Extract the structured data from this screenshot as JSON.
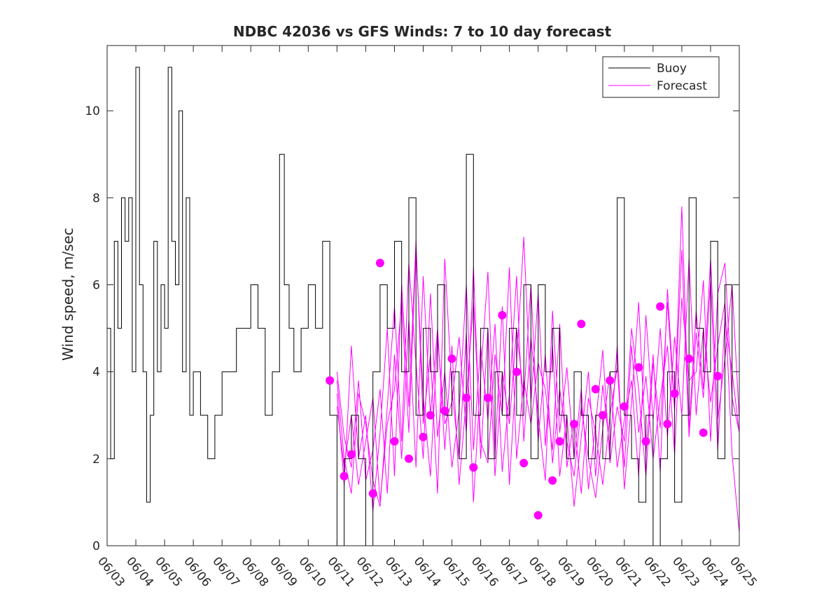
{
  "chart_data": {
    "type": "line",
    "title": "NDBC 42036 vs GFS Winds: 7 to 10 day forecast",
    "xlabel": "",
    "ylabel": "Wind speed, m/sec",
    "x_ticks": [
      "06/03",
      "06/04",
      "06/05",
      "06/06",
      "06/07",
      "06/08",
      "06/09",
      "06/10",
      "06/11",
      "06/12",
      "06/13",
      "06/14",
      "06/15",
      "06/16",
      "06/17",
      "06/18",
      "06/19",
      "06/20",
      "06/21",
      "06/22",
      "06/23",
      "06/24",
      "06/25"
    ],
    "xlim": [
      "06/03",
      "06/25"
    ],
    "y_ticks": [
      "0",
      "2",
      "4",
      "6",
      "8",
      "10"
    ],
    "ylim": [
      0,
      11.5
    ],
    "grid": false,
    "legend_position": "top-right",
    "colors": {
      "buoy": "#000000",
      "forecast": "#ff00ff"
    },
    "series": [
      {
        "name": "Buoy",
        "key": "buoy",
        "style": "step-line",
        "x": [
          "06/03 00:00",
          "06/03 03:00",
          "06/03 06:00",
          "06/03 09:00",
          "06/03 12:00",
          "06/03 15:00",
          "06/03 18:00",
          "06/03 21:00",
          "06/04 00:00",
          "06/04 03:00",
          "06/04 06:00",
          "06/04 09:00",
          "06/04 12:00",
          "06/04 15:00",
          "06/04 18:00",
          "06/04 21:00",
          "06/05 00:00",
          "06/05 03:00",
          "06/05 06:00",
          "06/05 09:00",
          "06/05 12:00",
          "06/05 15:00",
          "06/05 18:00",
          "06/05 21:00",
          "06/06 00:00",
          "06/06 06:00",
          "06/06 12:00",
          "06/06 18:00",
          "06/07 00:00",
          "06/07 06:00",
          "06/07 12:00",
          "06/07 18:00",
          "06/08 00:00",
          "06/08 06:00",
          "06/08 12:00",
          "06/08 18:00",
          "06/09 00:00",
          "06/09 04:00",
          "06/09 08:00",
          "06/09 12:00",
          "06/09 18:00",
          "06/10 00:00",
          "06/10 06:00",
          "06/10 12:00",
          "06/10 18:00",
          "06/11 00:00",
          "06/11 06:00",
          "06/11 12:00",
          "06/11 18:00",
          "06/12 00:00",
          "06/12 06:00",
          "06/12 12:00",
          "06/12 18:00",
          "06/13 00:00",
          "06/13 06:00",
          "06/13 12:00",
          "06/13 18:00",
          "06/14 00:00",
          "06/14 06:00",
          "06/14 12:00",
          "06/14 18:00",
          "06/15 00:00",
          "06/15 06:00",
          "06/15 12:00",
          "06/15 18:00",
          "06/16 00:00",
          "06/16 06:00",
          "06/16 12:00",
          "06/16 18:00",
          "06/17 00:00",
          "06/17 06:00",
          "06/17 12:00",
          "06/17 18:00",
          "06/18 00:00",
          "06/18 06:00",
          "06/18 12:00",
          "06/18 18:00",
          "06/19 00:00",
          "06/19 06:00",
          "06/19 12:00",
          "06/19 18:00",
          "06/20 00:00",
          "06/20 06:00",
          "06/20 12:00",
          "06/20 18:00",
          "06/21 00:00",
          "06/21 06:00",
          "06/21 12:00",
          "06/21 18:00",
          "06/22 00:00",
          "06/22 06:00",
          "06/22 12:00",
          "06/22 18:00",
          "06/23 00:00",
          "06/23 06:00",
          "06/23 12:00",
          "06/23 18:00",
          "06/24 00:00",
          "06/24 06:00",
          "06/24 12:00",
          "06/24 18:00",
          "06/25 00:00"
        ],
        "values": [
          5,
          2,
          7,
          5,
          8,
          7,
          8,
          4,
          11,
          6,
          4,
          1,
          3,
          7,
          4,
          6,
          5,
          11,
          7,
          6,
          10,
          4,
          8,
          3,
          4,
          3,
          2,
          3,
          4,
          4,
          5,
          5,
          6,
          5,
          3,
          4,
          9,
          6,
          5,
          4,
          5,
          6,
          5,
          7,
          3,
          0,
          2,
          3,
          2,
          0,
          4,
          6,
          5,
          7,
          4,
          8,
          3,
          5,
          4,
          6,
          3,
          4,
          2,
          9,
          3,
          5,
          2,
          4,
          3,
          5,
          3,
          6,
          2,
          6,
          4,
          5,
          3,
          2,
          4,
          3,
          2,
          3,
          2,
          4,
          8,
          3,
          2,
          1,
          3,
          0,
          2,
          4,
          1,
          3,
          8,
          5,
          4,
          7,
          2,
          6,
          3,
          3
        ]
      },
      {
        "name": "Forecast",
        "key": "forecast",
        "style": "thin-lines",
        "members": [
          {
            "x": [
              "06/11 00:00",
              "06/11 06:00",
              "06/11 12:00",
              "06/11 18:00",
              "06/12 00:00",
              "06/12 06:00",
              "06/12 12:00",
              "06/12 18:00",
              "06/13 00:00",
              "06/13 06:00",
              "06/13 12:00",
              "06/13 18:00",
              "06/14 00:00",
              "06/14 06:00",
              "06/14 12:00",
              "06/14 18:00",
              "06/15 00:00",
              "06/15 06:00",
              "06/15 12:00",
              "06/15 18:00",
              "06/16 00:00",
              "06/16 06:00",
              "06/16 12:00",
              "06/16 18:00",
              "06/17 00:00",
              "06/17 06:00",
              "06/17 12:00",
              "06/17 18:00",
              "06/18 00:00",
              "06/18 06:00",
              "06/18 12:00",
              "06/18 18:00",
              "06/19 00:00",
              "06/19 06:00",
              "06/19 12:00",
              "06/19 18:00",
              "06/20 00:00",
              "06/20 06:00",
              "06/20 12:00",
              "06/20 18:00",
              "06/21 00:00",
              "06/21 06:00",
              "06/21 12:00",
              "06/21 18:00",
              "06/22 00:00",
              "06/22 06:00",
              "06/22 12:00",
              "06/22 18:00",
              "06/23 00:00",
              "06/23 06:00",
              "06/23 12:00",
              "06/23 18:00",
              "06/24 00:00",
              "06/24 06:00",
              "06/24 12:00",
              "06/24 18:00",
              "06/25 00:00"
            ],
            "values": [
              3.8,
              2.0,
              1.2,
              3.5,
              2.8,
              1.5,
              0.9,
              3.2,
              5.5,
              2.4,
              6.5,
              4.2,
              2.0,
              5.8,
              2.5,
              4.0,
              1.8,
              3.1,
              6.0,
              2.2,
              4.6,
              2.9,
              5.1,
              1.7,
              3.5,
              6.2,
              2.4,
              4.8,
              3.0,
              1.5,
              5.4,
              2.6,
              4.1,
              2.0,
              3.6,
              1.3,
              2.8,
              4.5,
              1.9,
              3.2,
              2.4,
              5.0,
              3.6,
              1.6,
              4.2,
              2.7,
              5.6,
              3.1,
              6.8,
              2.5,
              4.9,
              3.4,
              6.1,
              2.2,
              5.2,
              4.0,
              2.6
            ]
          },
          {
            "x": [
              "06/11 00:00",
              "06/11 06:00",
              "06/11 12:00",
              "06/11 18:00",
              "06/12 00:00",
              "06/12 06:00",
              "06/12 12:00",
              "06/12 18:00",
              "06/13 00:00",
              "06/13 06:00",
              "06/13 12:00",
              "06/13 18:00",
              "06/14 00:00",
              "06/14 06:00",
              "06/14 12:00",
              "06/14 18:00",
              "06/15 00:00",
              "06/15 06:00",
              "06/15 12:00",
              "06/15 18:00",
              "06/16 00:00",
              "06/16 06:00",
              "06/16 12:00",
              "06/16 18:00",
              "06/17 00:00",
              "06/17 06:00",
              "06/17 12:00",
              "06/17 18:00",
              "06/18 00:00",
              "06/18 06:00",
              "06/18 12:00",
              "06/18 18:00",
              "06/19 00:00",
              "06/19 06:00",
              "06/19 12:00",
              "06/19 18:00",
              "06/20 00:00",
              "06/20 06:00",
              "06/20 12:00",
              "06/20 18:00",
              "06/21 00:00",
              "06/21 06:00",
              "06/21 12:00",
              "06/21 18:00",
              "06/22 00:00",
              "06/22 06:00",
              "06/22 12:00",
              "06/22 18:00",
              "06/23 00:00",
              "06/23 06:00",
              "06/23 12:00",
              "06/23 18:00",
              "06/24 00:00",
              "06/24 06:00",
              "06/24 12:00",
              "06/24 18:00",
              "06/25 00:00"
            ],
            "values": [
              3.5,
              1.4,
              4.6,
              2.0,
              3.0,
              0.8,
              2.6,
              5.0,
              1.6,
              6.0,
              3.2,
              7.0,
              2.8,
              4.4,
              1.2,
              6.6,
              3.6,
              2.0,
              4.9,
              1.0,
              3.9,
              6.3,
              2.1,
              5.5,
              1.4,
              4.2,
              7.1,
              3.3,
              5.8,
              2.3,
              4.6,
              1.6,
              3.0,
              0.9,
              2.5,
              4.0,
              1.6,
              3.7,
              2.2,
              4.6,
              1.3,
              3.3,
              5.6,
              2.1,
              4.4,
              1.7,
              5.9,
              3.2,
              7.8,
              2.7,
              5.4,
              3.6,
              6.6,
              2.9,
              4.3,
              6.0,
              2.9
            ]
          },
          {
            "x": [
              "06/11 00:00",
              "06/11 06:00",
              "06/11 12:00",
              "06/11 18:00",
              "06/12 00:00",
              "06/12 06:00",
              "06/12 12:00",
              "06/12 18:00",
              "06/13 00:00",
              "06/13 06:00",
              "06/13 12:00",
              "06/13 18:00",
              "06/14 00:00",
              "06/14 06:00",
              "06/14 12:00",
              "06/14 18:00",
              "06/15 00:00",
              "06/15 06:00",
              "06/15 12:00",
              "06/15 18:00",
              "06/16 00:00",
              "06/16 06:00",
              "06/16 12:00",
              "06/16 18:00",
              "06/17 00:00",
              "06/17 06:00",
              "06/17 12:00",
              "06/17 18:00",
              "06/18 00:00",
              "06/18 06:00",
              "06/18 12:00",
              "06/18 18:00",
              "06/19 00:00",
              "06/19 06:00",
              "06/19 12:00",
              "06/19 18:00",
              "06/20 00:00",
              "06/20 06:00",
              "06/20 12:00",
              "06/20 18:00",
              "06/21 00:00",
              "06/21 06:00",
              "06/21 12:00",
              "06/21 18:00",
              "06/22 00:00",
              "06/22 06:00",
              "06/22 12:00",
              "06/22 18:00",
              "06/23 00:00",
              "06/23 06:00",
              "06/23 12:00",
              "06/23 18:00",
              "06/24 00:00",
              "06/24 06:00",
              "06/24 12:00",
              "06/24 18:00",
              "06/25 00:00"
            ],
            "values": [
              4.0,
              2.5,
              1.8,
              3.8,
              1.5,
              2.2,
              3.6,
              1.2,
              4.4,
              2.0,
              5.2,
              1.8,
              6.2,
              3.0,
              5.0,
              2.2,
              4.6,
              1.4,
              3.4,
              5.6,
              2.4,
              1.9,
              4.4,
              3.0,
              6.4,
              2.0,
              3.8,
              2.8,
              4.2,
              3.6,
              2.2,
              5.1,
              1.8,
              2.9,
              1.2,
              3.4,
              2.6,
              1.4,
              3.0,
              4.1,
              1.8,
              4.6,
              2.6,
              3.9,
              2.0,
              3.4,
              4.6,
              2.1,
              5.7,
              3.8,
              4.0,
              6.1,
              2.4,
              5.8,
              6.5,
              3.4,
              2.6
            ]
          },
          {
            "x": [
              "06/11 00:00",
              "06/11 06:00",
              "06/11 12:00",
              "06/11 18:00",
              "06/12 00:00",
              "06/12 06:00",
              "06/12 12:00",
              "06/12 18:00",
              "06/13 00:00",
              "06/13 06:00",
              "06/13 12:00",
              "06/13 18:00",
              "06/14 00:00",
              "06/14 06:00",
              "06/14 12:00",
              "06/14 18:00",
              "06/15 00:00",
              "06/15 06:00",
              "06/15 12:00",
              "06/15 18:00",
              "06/16 00:00",
              "06/16 06:00",
              "06/16 12:00",
              "06/16 18:00",
              "06/17 00:00",
              "06/17 06:00",
              "06/17 12:00",
              "06/17 18:00",
              "06/18 00:00",
              "06/18 06:00",
              "06/18 12:00",
              "06/18 18:00",
              "06/19 00:00",
              "06/19 06:00",
              "06/19 12:00",
              "06/19 18:00",
              "06/20 00:00",
              "06/20 06:00",
              "06/20 12:00",
              "06/20 18:00",
              "06/21 00:00",
              "06/21 06:00",
              "06/21 12:00",
              "06/21 18:00",
              "06/22 00:00",
              "06/22 06:00",
              "06/22 12:00",
              "06/22 18:00",
              "06/23 00:00",
              "06/23 06:00",
              "06/23 12:00",
              "06/23 18:00",
              "06/24 00:00",
              "06/24 06:00",
              "06/24 12:00",
              "06/24 18:00",
              "06/25 00:00"
            ],
            "values": [
              3.2,
              1.8,
              3.0,
              1.4,
              2.4,
              3.4,
              1.0,
              2.8,
              3.6,
              5.6,
              2.6,
              6.8,
              3.4,
              1.6,
              4.8,
              2.8,
              3.3,
              4.8,
              2.6,
              6.4,
              2.0,
              5.0,
              1.6,
              4.0,
              2.8,
              5.0,
              3.4,
              6.0,
              2.4,
              4.4,
              1.9,
              3.6,
              2.4,
              1.6,
              3.2,
              2.0,
              1.1,
              2.7,
              4.0,
              1.8,
              2.9,
              3.8,
              1.6,
              5.3,
              2.9,
              5.0,
              2.5,
              4.8,
              3.0,
              6.6,
              3.0,
              5.0,
              3.3,
              4.6,
              5.6,
              2.1,
              0.3
            ]
          }
        ],
        "markers": {
          "x": [
            "06/10 18:00",
            "06/11 06:00",
            "06/11 12:00",
            "06/12 06:00",
            "06/12 12:00",
            "06/13 00:00",
            "06/13 12:00",
            "06/14 00:00",
            "06/14 06:00",
            "06/14 18:00",
            "06/15 00:00",
            "06/15 12:00",
            "06/15 18:00",
            "06/16 06:00",
            "06/16 18:00",
            "06/17 06:00",
            "06/17 12:00",
            "06/18 00:00",
            "06/18 12:00",
            "06/18 18:00",
            "06/19 06:00",
            "06/19 12:00",
            "06/20 00:00",
            "06/20 06:00",
            "06/20 12:00",
            "06/21 00:00",
            "06/21 12:00",
            "06/21 18:00",
            "06/22 06:00",
            "06/22 12:00",
            "06/22 18:00",
            "06/23 06:00",
            "06/23 18:00",
            "06/24 06:00"
          ],
          "values": [
            3.8,
            1.6,
            2.1,
            1.2,
            6.5,
            2.4,
            2.0,
            2.5,
            3.0,
            3.1,
            4.3,
            3.4,
            1.8,
            3.4,
            5.3,
            4.0,
            1.9,
            0.7,
            1.5,
            2.4,
            2.8,
            5.1,
            3.6,
            3.0,
            3.8,
            3.2,
            4.1,
            2.4,
            5.5,
            2.8,
            3.5,
            4.3,
            2.6,
            3.9
          ]
        }
      }
    ]
  }
}
